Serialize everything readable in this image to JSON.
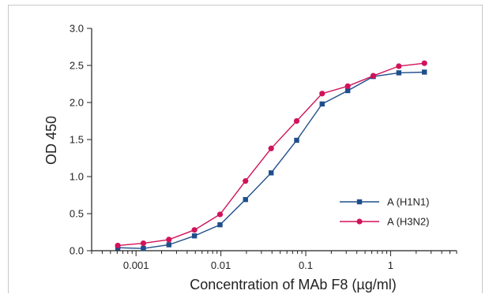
{
  "chart_data": {
    "type": "line",
    "title": "",
    "xlabel": "Concentration of MAb F8 (µg/ml)",
    "ylabel": "OD 450",
    "x_scale": "log",
    "xlim": [
      0.0003,
      6
    ],
    "ylim": [
      0,
      3.0
    ],
    "x_tick_labels": [
      "0.001",
      "0.01",
      "0.1",
      "1"
    ],
    "x_ticks": [
      0.001,
      0.01,
      0.1,
      1
    ],
    "y_tick_labels": [
      "0.0",
      "0.5",
      "1.0",
      "1.5",
      "2.0",
      "2.5",
      "3.0"
    ],
    "y_ticks": [
      0,
      0.5,
      1.0,
      1.5,
      2.0,
      2.5,
      3.0
    ],
    "grid": false,
    "legend_position": "lower-right",
    "series": [
      {
        "name": "A (H1N1)",
        "color": "#1f4e8c",
        "marker": "square",
        "x": [
          0.00061,
          0.00122,
          0.00244,
          0.00488,
          0.00977,
          0.0195,
          0.0391,
          0.0781,
          0.156,
          0.3125,
          0.625,
          1.25,
          2.5
        ],
        "y": [
          0.04,
          0.03,
          0.08,
          0.2,
          0.35,
          0.69,
          1.05,
          1.49,
          1.98,
          2.16,
          2.35,
          2.4,
          2.41
        ]
      },
      {
        "name": "A (H3N2)",
        "color": "#d0135a",
        "marker": "circle",
        "x": [
          0.00061,
          0.00122,
          0.00244,
          0.00488,
          0.00977,
          0.0195,
          0.0391,
          0.0781,
          0.156,
          0.3125,
          0.625,
          1.25,
          2.5
        ],
        "y": [
          0.07,
          0.1,
          0.15,
          0.28,
          0.49,
          0.94,
          1.38,
          1.75,
          2.12,
          2.22,
          2.36,
          2.49,
          2.53
        ]
      }
    ]
  }
}
